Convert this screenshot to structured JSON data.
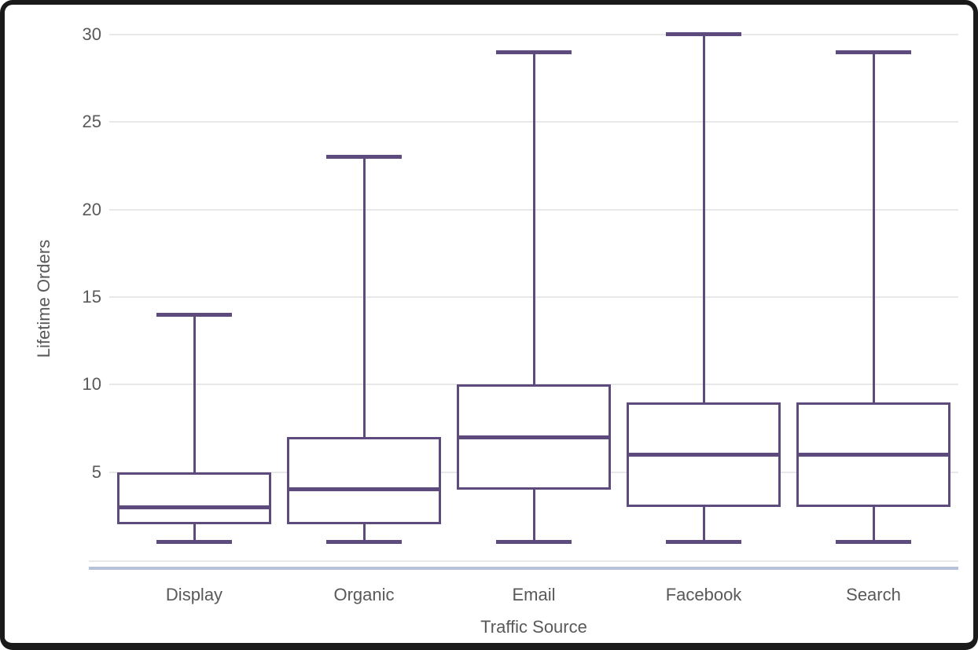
{
  "frame": {
    "background": "#ffffff",
    "border_color": "#1a1a1a"
  },
  "chart_data": {
    "type": "boxplot",
    "title": "",
    "xlabel": "Traffic Source",
    "ylabel": "Lifetime Orders",
    "categories": [
      "Display",
      "Organic",
      "Email",
      "Facebook",
      "Search"
    ],
    "series": [
      {
        "name": "Display",
        "min": 1,
        "q1": 2,
        "median": 3,
        "q3": 5,
        "max": 14
      },
      {
        "name": "Organic",
        "min": 1,
        "q1": 2,
        "median": 4,
        "q3": 7,
        "max": 23
      },
      {
        "name": "Email",
        "min": 1,
        "q1": 4,
        "median": 7,
        "q3": 10,
        "max": 29
      },
      {
        "name": "Facebook",
        "min": 1,
        "q1": 3,
        "median": 6,
        "q3": 9,
        "max": 30
      },
      {
        "name": "Search",
        "min": 1,
        "q1": 3,
        "median": 6,
        "q3": 9,
        "max": 29
      }
    ],
    "ylim": [
      0,
      30
    ],
    "yticks": [
      5,
      10,
      15,
      20,
      25,
      30
    ],
    "grid": true,
    "legend": false,
    "colors": {
      "box": "#5e4b7e",
      "grid": "#e8e8e8",
      "zero_line": "#e8e8e8",
      "axis_line": "#b7c2da",
      "text": "#595959"
    }
  }
}
